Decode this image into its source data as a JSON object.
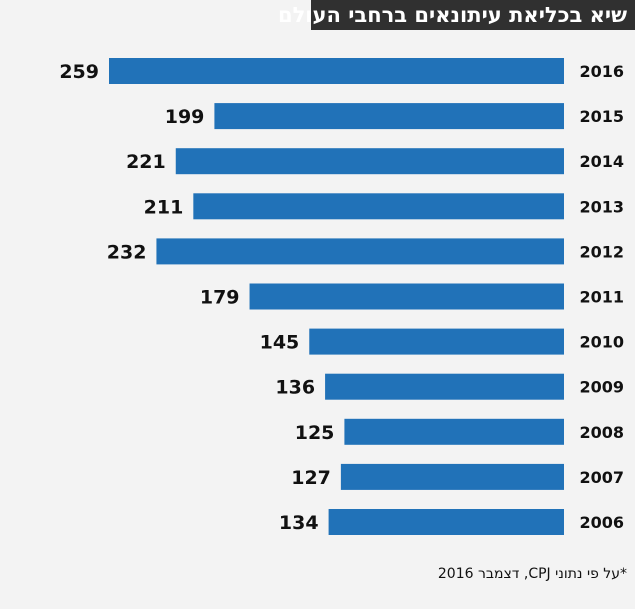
{
  "chart_data": {
    "type": "bar",
    "orientation": "horizontal",
    "title": "שיא בכליאת עיתונאים ברחבי העולם",
    "categories": [
      "2016",
      "2015",
      "2014",
      "2013",
      "2012",
      "2011",
      "2010",
      "2009",
      "2008",
      "2007",
      "2006"
    ],
    "values": [
      259,
      199,
      221,
      211,
      232,
      179,
      145,
      136,
      125,
      127,
      134
    ],
    "xlabel": "",
    "ylabel": "",
    "xlim": [
      0,
      259
    ],
    "grid": false,
    "legend": "none",
    "bar_color": "#2172b8"
  },
  "footnote": "*על פי נתוני CPJ, דצמבר 2016"
}
